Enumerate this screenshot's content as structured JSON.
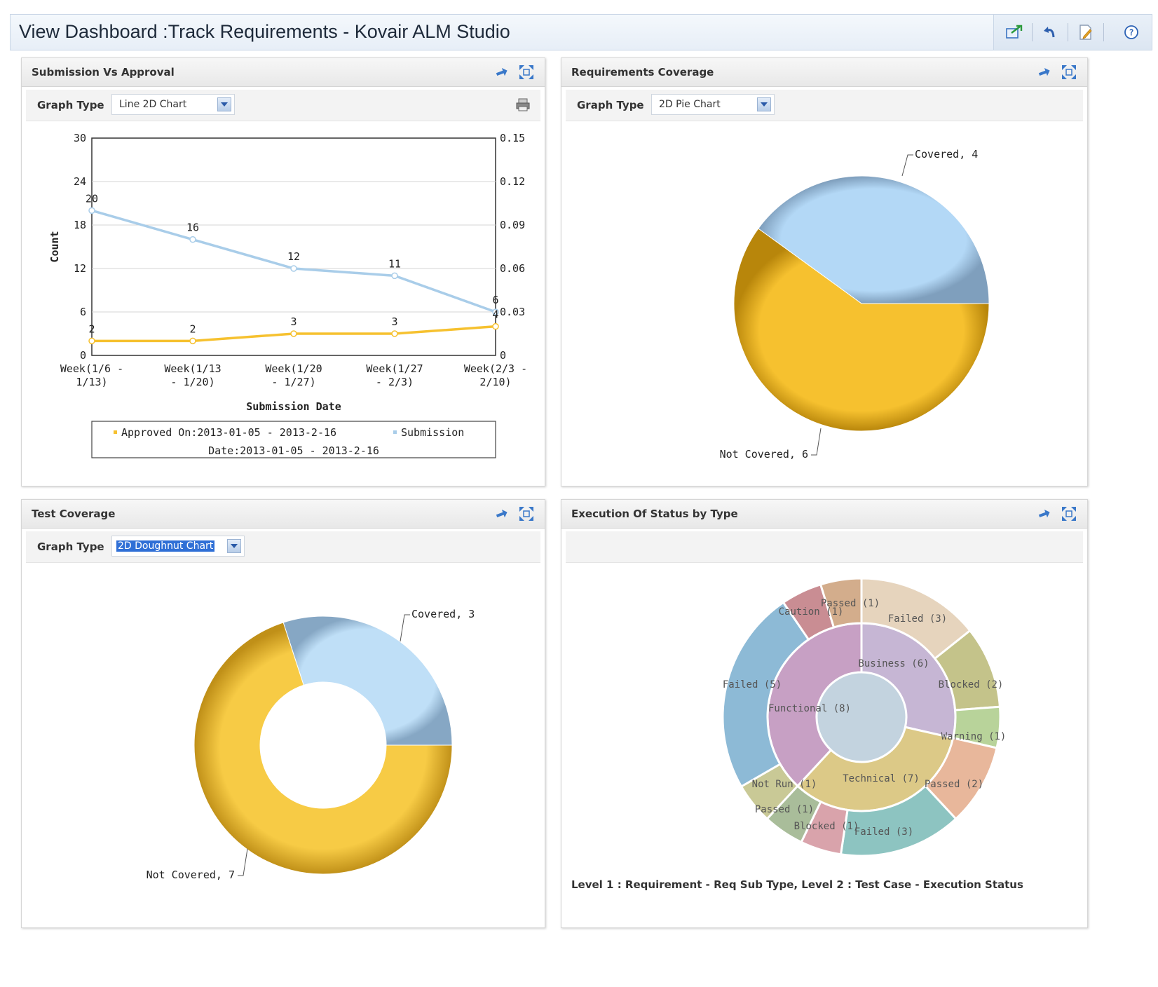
{
  "window": {
    "title": "View Dashboard :Track Requirements - Kovair ALM Studio"
  },
  "toolbar_icons": [
    "export-icon",
    "undo-icon",
    "edit-document-icon",
    "help-icon"
  ],
  "panels": {
    "submission": {
      "title": "Submission Vs Approval",
      "graph_type_label": "Graph Type",
      "graph_type_value": "Line 2D Chart"
    },
    "requirements": {
      "title": "Requirements Coverage",
      "graph_type_label": "Graph Type",
      "graph_type_value": "2D Pie Chart"
    },
    "test": {
      "title": "Test Coverage",
      "graph_type_label": "Graph Type",
      "graph_type_value": "2D Doughnut Chart"
    },
    "execution": {
      "title": "Execution Of Status by Type",
      "caption": "Level 1 : Requirement - Req Sub Type, Level 2 : Test Case - Execution Status"
    }
  },
  "chart_data": [
    {
      "type": "line",
      "categories": [
        "Week(1/6 - 1/13)",
        "Week(1/13 - 1/20)",
        "Week(1/20 - 1/27)",
        "Week(1/27 - 2/3)",
        "Week(2/3 - 2/10)"
      ],
      "category_lines": [
        [
          "Week(1/6 -",
          "1/13)"
        ],
        [
          "Week(1/13",
          "- 1/20)"
        ],
        [
          "Week(1/20",
          "- 1/27)"
        ],
        [
          "Week(1/27",
          "- 2/3)"
        ],
        [
          "Week(2/3 -",
          "2/10)"
        ]
      ],
      "series": [
        {
          "name": "Submission Date:2013-01-05 - 2013-2-16",
          "values": [
            20,
            16,
            12,
            11,
            6
          ],
          "color": "#a9cde9"
        },
        {
          "name": "Approved On:2013-01-05 - 2013-2-16",
          "values": [
            2,
            2,
            3,
            3,
            4
          ],
          "color": "#f6c12f"
        }
      ],
      "xlabel": "Submission Date",
      "ylabel": "Count",
      "ylim": [
        0,
        30
      ],
      "yticks": [
        0,
        6,
        12,
        18,
        24,
        30
      ],
      "y2ticks": [
        "0",
        "0.03",
        "0.06",
        "0.09",
        "0.12",
        "0.15"
      ],
      "legend_lines": [
        "Approved On:2013-01-05 - 2013-2-16",
        "Submission",
        "Date:2013-01-05 - 2013-2-16"
      ],
      "legend_position": "bottom",
      "grid": true
    },
    {
      "type": "pie",
      "labels": [
        "Covered",
        "Not Covered"
      ],
      "values": [
        4,
        6
      ],
      "data_labels": [
        "Covered, 4",
        "Not Covered, 6"
      ],
      "colors": [
        "#b3d8f6",
        "#f6c12f"
      ]
    },
    {
      "type": "pie",
      "variant": "doughnut",
      "labels": [
        "Covered",
        "Not Covered"
      ],
      "values": [
        3,
        7
      ],
      "data_labels": [
        "Covered, 3",
        "Not Covered, 7"
      ],
      "colors": [
        "#bfdff7",
        "#f7cb45"
      ]
    },
    {
      "type": "pie",
      "variant": "sunburst",
      "inner": [
        {
          "label": "Business (6)",
          "value": 6,
          "color": "#c6b6d4"
        },
        {
          "label": "Technical (7)",
          "value": 7,
          "color": "#dcc987"
        },
        {
          "label": "Functional (8)",
          "value": 8,
          "color": "#c7a0c4"
        }
      ],
      "outer": [
        {
          "label": "Failed (3)",
          "value": 3,
          "color": "#e6d4bd"
        },
        {
          "label": "Blocked (2)",
          "value": 2,
          "color": "#c4c38a"
        },
        {
          "label": "Warning (1)",
          "value": 1,
          "color": "#b8d39a"
        },
        {
          "label": "Passed (2)",
          "value": 2,
          "color": "#e8b79b"
        },
        {
          "label": "Failed (3)",
          "value": 3,
          "color": "#8dc4c1"
        },
        {
          "label": "Blocked (1)",
          "value": 1,
          "color": "#d9a3ab"
        },
        {
          "label": "Passed (1)",
          "value": 1,
          "color": "#a9bd9a"
        },
        {
          "label": "Not Run (1)",
          "value": 1,
          "color": "#c9c996"
        },
        {
          "label": "Failed (5)",
          "value": 5,
          "color": "#8dbad6"
        },
        {
          "label": "Caution (1)",
          "value": 1,
          "color": "#c98d93"
        },
        {
          "label": "Passed (1)",
          "value": 1,
          "color": "#d3ad8c"
        }
      ]
    }
  ]
}
